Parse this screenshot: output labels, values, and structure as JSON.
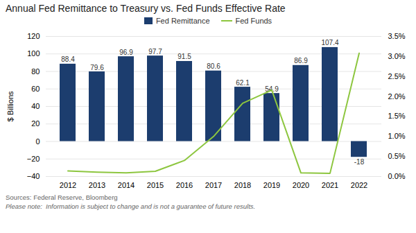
{
  "chart_data": {
    "type": "bar",
    "title": "Annual Fed Remittance to Treasury vs. Fed Funds Effective Rate",
    "categories": [
      "2012",
      "2013",
      "2014",
      "2015",
      "2016",
      "2017",
      "2018",
      "2019",
      "2020",
      "2021",
      "2022"
    ],
    "series": [
      {
        "name": "Fed Remittance",
        "type": "bar",
        "color": "#1c3d6e",
        "data_labels": true,
        "values": [
          88.4,
          79.6,
          96.9,
          97.7,
          91.5,
          80.6,
          62.1,
          54.9,
          86.9,
          107.4,
          -18
        ]
      },
      {
        "name": "Fed Funds",
        "type": "line",
        "axis": "y2",
        "color": "#8dc63f",
        "values": [
          0.0014,
          0.0011,
          0.0009,
          0.0013,
          0.004,
          0.01,
          0.0183,
          0.0216,
          0.0009,
          0.0008,
          0.0308
        ]
      }
    ],
    "ylabel": "$ Billions",
    "ylim": [
      -40,
      120
    ],
    "yticks": [
      -40,
      -20,
      0,
      20,
      40,
      60,
      80,
      100,
      120
    ],
    "y2lim": [
      0.0,
      0.035
    ],
    "y2ticks": [
      {
        "value": 0.0,
        "label": "0.0%"
      },
      {
        "value": 0.005,
        "label": "0.5%"
      },
      {
        "value": 0.01,
        "label": "1.0%"
      },
      {
        "value": 0.015,
        "label": "1.5%"
      },
      {
        "value": 0.02,
        "label": "2.0%"
      },
      {
        "value": 0.025,
        "label": "2.5%"
      },
      {
        "value": 0.03,
        "label": "3.0%"
      },
      {
        "value": 0.035,
        "label": "3.5%"
      }
    ],
    "grid": true,
    "legend": "top",
    "annotations": [
      "Sources: Federal Reserve, Bloomberg",
      "Please note:  Information is subject to change and is not a guarantee of future results."
    ]
  }
}
